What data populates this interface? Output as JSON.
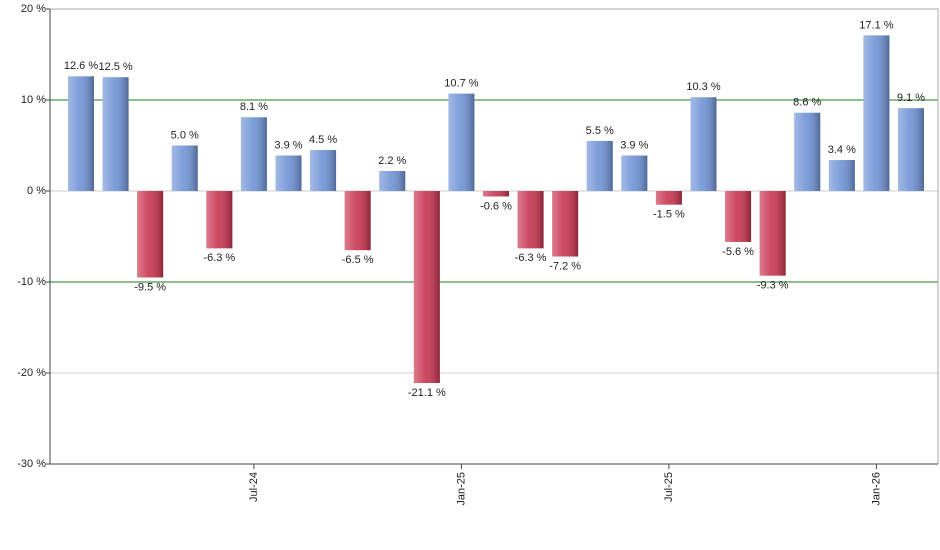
{
  "chart_data": {
    "type": "bar",
    "categories": [
      null,
      null,
      null,
      null,
      null,
      "Jul-24",
      null,
      null,
      null,
      null,
      null,
      "Jan-25",
      null,
      null,
      null,
      null,
      null,
      "Jul-25",
      null,
      null,
      null,
      null,
      null,
      "Jan-26",
      null
    ],
    "values": [
      12.6,
      12.5,
      -9.5,
      5.0,
      -6.3,
      8.1,
      3.9,
      4.5,
      -6.5,
      2.2,
      -21.1,
      10.7,
      -0.6,
      -6.3,
      -7.2,
      5.5,
      3.9,
      -1.5,
      10.3,
      -5.6,
      -9.3,
      8.6,
      3.4,
      17.1,
      9.1
    ],
    "value_labels": [
      "12.6 %",
      "12.5 %",
      "-9.5 %",
      "5.0 %",
      "-6.3 %",
      "8.1 %",
      "3.9 %",
      "4.5 %",
      "-6.5 %",
      "2.2 %",
      "-21.1 %",
      "10.7 %",
      "-0.6 %",
      "-6.3 %",
      "-7.2 %",
      "5.5 %",
      "3.9 %",
      "-1.5 %",
      "10.3 %",
      "-5.6 %",
      "-9.3 %",
      "8.6 %",
      "3.4 %",
      "17.1 %",
      "9.1 %"
    ],
    "positive_color": "#6f93d6",
    "negative_color": "#c8344f",
    "ylim": [
      -30,
      20
    ],
    "yticks": [
      {
        "value": -30,
        "label": "-30 %"
      },
      {
        "value": -20,
        "label": "-20 %"
      },
      {
        "value": -10,
        "label": "-10 %"
      },
      {
        "value": 0,
        "label": "0 %"
      },
      {
        "value": 10,
        "label": "10 %"
      },
      {
        "value": 20,
        "label": "20 %"
      }
    ],
    "grid": true,
    "reference_lines": {
      "values": [
        -10,
        10
      ],
      "color": "#1a7f1a"
    }
  }
}
